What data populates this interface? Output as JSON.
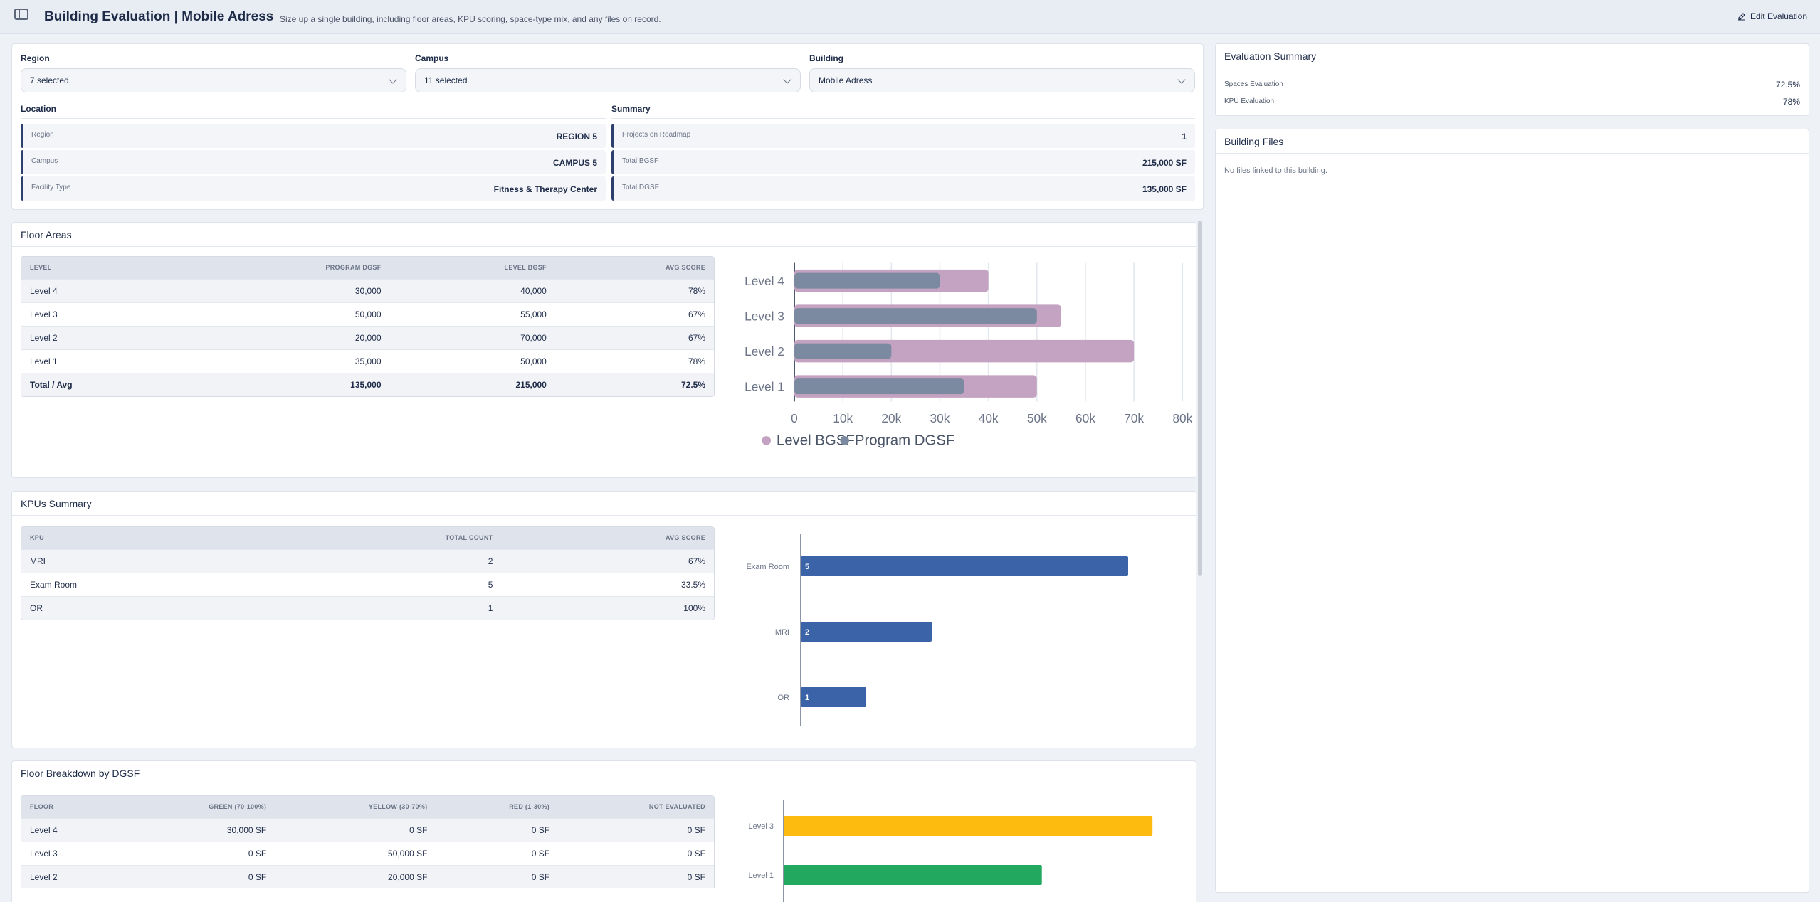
{
  "header": {
    "title": "Building Evaluation | Mobile Adress",
    "subtitle": "Size up a single building, including floor areas, KPU scoring, space-type mix, and any files on record.",
    "edit_label": "Edit Evaluation"
  },
  "filters": {
    "region": {
      "label": "Region",
      "value": "7 selected"
    },
    "campus": {
      "label": "Campus",
      "value": "11 selected"
    },
    "building": {
      "label": "Building",
      "value": "Mobile Adress"
    }
  },
  "location": {
    "title": "Location",
    "rows": [
      {
        "key": "Region",
        "value": "REGION 5"
      },
      {
        "key": "Campus",
        "value": "CAMPUS 5"
      },
      {
        "key": "Facility Type",
        "value": "Fitness & Therapy Center"
      }
    ]
  },
  "summary": {
    "title": "Summary",
    "rows": [
      {
        "key": "Projects on Roadmap",
        "value": "1"
      },
      {
        "key": "Total BGSF",
        "value": "215,000 SF"
      },
      {
        "key": "Total DGSF",
        "value": "135,000 SF"
      }
    ]
  },
  "floor_areas": {
    "title": "Floor Areas",
    "columns": [
      "Level",
      "Program DGSF",
      "Level BGSF",
      "Avg Score"
    ],
    "rows": [
      [
        "Level 4",
        "30,000",
        "40,000",
        "78%"
      ],
      [
        "Level 3",
        "50,000",
        "55,000",
        "67%"
      ],
      [
        "Level 2",
        "20,000",
        "70,000",
        "67%"
      ],
      [
        "Level 1",
        "35,000",
        "50,000",
        "78%"
      ]
    ],
    "total": [
      "Total / Avg",
      "135,000",
      "215,000",
      "72.5%"
    ]
  },
  "kpus": {
    "title": "KPUs Summary",
    "columns": [
      "KPU",
      "Total Count",
      "Avg Score"
    ],
    "rows": [
      [
        "MRI",
        "2",
        "67%"
      ],
      [
        "Exam Room",
        "5",
        "33.5%"
      ],
      [
        "OR",
        "1",
        "100%"
      ]
    ]
  },
  "breakdown": {
    "title": "Floor Breakdown by DGSF",
    "columns": [
      "Floor",
      "Green (70-100%)",
      "Yellow (30-70%)",
      "Red (1-30%)",
      "Not Evaluated"
    ],
    "rows": [
      [
        "Level 4",
        "30,000 SF",
        "0 SF",
        "0 SF",
        "0 SF"
      ],
      [
        "Level 3",
        "0 SF",
        "50,000 SF",
        "0 SF",
        "0 SF"
      ],
      [
        "Level 2",
        "0 SF",
        "20,000 SF",
        "0 SF",
        "0 SF"
      ]
    ]
  },
  "eval_summary": {
    "title": "Evaluation Summary",
    "rows": [
      {
        "key": "Spaces Evaluation",
        "value": "72.5%"
      },
      {
        "key": "KPU Evaluation",
        "value": "78%"
      }
    ]
  },
  "files": {
    "title": "Building Files",
    "empty": "No files linked to this building."
  },
  "icons": {
    "sidebar_toggle": "sidebar-toggle-icon",
    "edit": "edit-icon",
    "chevron": "chevron-down-icon"
  },
  "colors": {
    "level_bgsf": "#c3a3c1",
    "program_dgsf": "#7b8aa0",
    "kpu_bar": "#3b63a8",
    "green": "#22a85f",
    "yellow": "#fdbb10"
  },
  "chart_data": [
    {
      "type": "bar",
      "orientation": "horizontal",
      "categories": [
        "Level 4",
        "Level 3",
        "Level 2",
        "Level 1"
      ],
      "series": [
        {
          "name": "Level BGSF",
          "values": [
            40000,
            55000,
            70000,
            50000
          ],
          "color": "#c3a3c1"
        },
        {
          "name": "Program DGSF",
          "values": [
            30000,
            50000,
            20000,
            35000
          ],
          "color": "#7b8aa0"
        }
      ],
      "xlim": [
        0,
        80000
      ],
      "xticks": [
        "0",
        "10k",
        "20k",
        "30k",
        "40k",
        "50k",
        "60k",
        "70k",
        "80k"
      ],
      "grid": "vertical",
      "legend": "bottom"
    },
    {
      "type": "bar",
      "orientation": "horizontal",
      "categories": [
        "Exam Room",
        "MRI",
        "OR"
      ],
      "values": [
        5,
        2,
        1
      ],
      "xlim": [
        0,
        6
      ],
      "data_labels": true,
      "color": "#3b63a8"
    },
    {
      "type": "bar",
      "orientation": "horizontal",
      "categories": [
        "Level 3",
        "Level 1"
      ],
      "series": [
        {
          "values": [
            50000,
            0
          ],
          "color": "#fdbb10"
        },
        {
          "values": [
            0,
            35000
          ],
          "color": "#22a85f"
        }
      ],
      "xlim": [
        0,
        55000
      ]
    }
  ]
}
